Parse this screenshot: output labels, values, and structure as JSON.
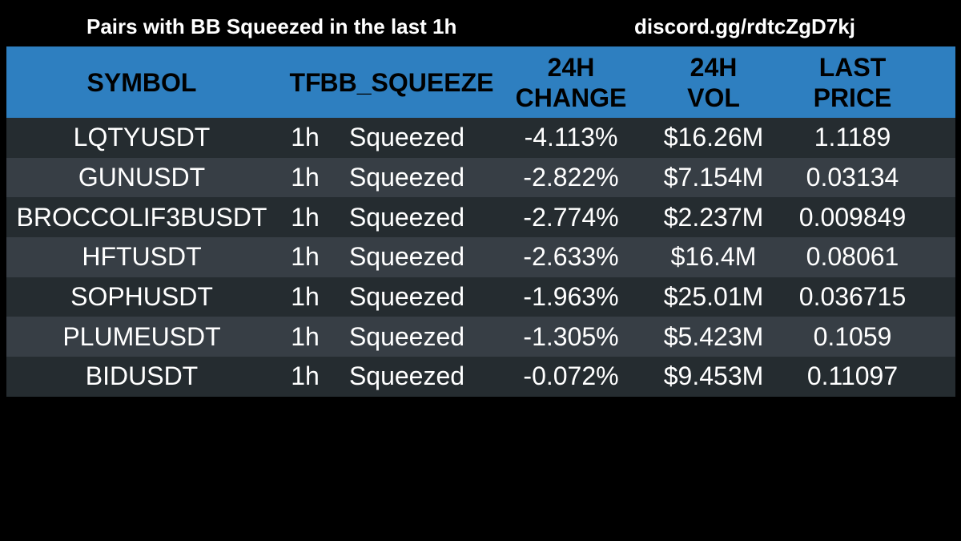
{
  "header": {
    "title": "Pairs with BB Squeezed in the last 1h",
    "link": "discord.gg/rdtcZgD7kj"
  },
  "table": {
    "columns": {
      "symbol": "SYMBOL",
      "tf": "TF",
      "bb_squeeze": "BB_SQUEEZE",
      "change_line1": "24H",
      "change_line2": "CHANGE",
      "vol_line1": "24H",
      "vol_line2": "VOL",
      "price_line1": "LAST",
      "price_line2": "PRICE"
    },
    "rows": [
      {
        "symbol": "LQTYUSDT",
        "tf": "1h",
        "bb_squeeze": "Squeezed",
        "change": "-4.113%",
        "vol": "$16.26M",
        "price": "1.1189"
      },
      {
        "symbol": "GUNUSDT",
        "tf": "1h",
        "bb_squeeze": "Squeezed",
        "change": "-2.822%",
        "vol": "$7.154M",
        "price": "0.03134"
      },
      {
        "symbol": "BROCCOLIF3BUSDT",
        "tf": "1h",
        "bb_squeeze": "Squeezed",
        "change": "-2.774%",
        "vol": "$2.237M",
        "price": "0.009849"
      },
      {
        "symbol": "HFTUSDT",
        "tf": "1h",
        "bb_squeeze": "Squeezed",
        "change": "-2.633%",
        "vol": "$16.4M",
        "price": "0.08061"
      },
      {
        "symbol": "SOPHUSDT",
        "tf": "1h",
        "bb_squeeze": "Squeezed",
        "change": "-1.963%",
        "vol": "$25.01M",
        "price": "0.036715"
      },
      {
        "symbol": "PLUMEUSDT",
        "tf": "1h",
        "bb_squeeze": "Squeezed",
        "change": "-1.305%",
        "vol": "$5.423M",
        "price": "0.1059"
      },
      {
        "symbol": "BIDUSDT",
        "tf": "1h",
        "bb_squeeze": "Squeezed",
        "change": "-0.072%",
        "vol": "$9.453M",
        "price": "0.11097"
      }
    ]
  },
  "colors": {
    "background": "#000000",
    "header_bg": "#2e7fc0",
    "row_dark": "#252c30",
    "row_light": "#373e45",
    "text": "#ffffff"
  }
}
